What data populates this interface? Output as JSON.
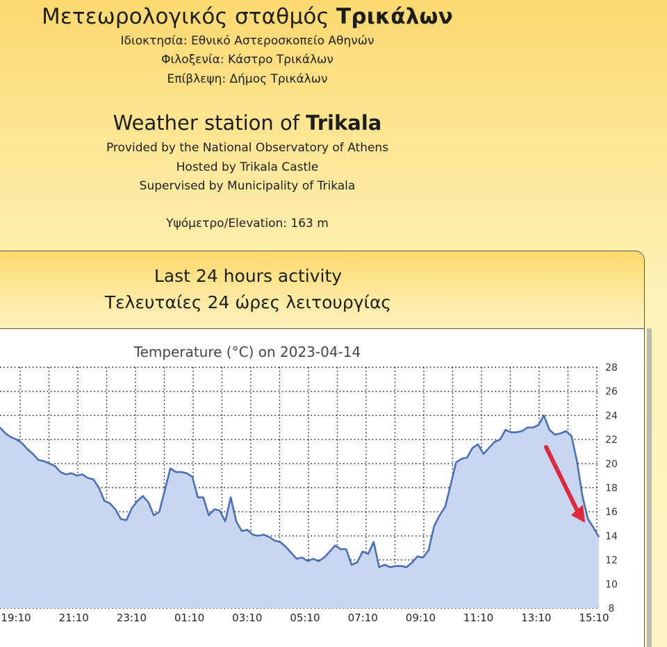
{
  "header": {
    "gr_title_prefix": "Μετεωρολογικός σταθμός ",
    "gr_title_bold": "Τρικάλων",
    "gr_owner": "Ιδιοκτησία: Εθνικό Αστεροσκοπείο Αθηνών",
    "gr_host": "Φιλοξενία: Κάστρο Τρικάλων",
    "gr_supervision": "Επίβλεψη: Δήμος Τρικάλων",
    "en_title_prefix": "Weather station of ",
    "en_title_bold": "Trikala",
    "en_owner": "Provided by the National Observatory of Athens",
    "en_host": "Hosted by Trikala Castle",
    "en_supervision": "Supervised by Municipality of Trikala",
    "elevation": "Υψόμετρο/Elevation: 163 m"
  },
  "panel": {
    "title_en": "Last 24 hours activity",
    "title_gr": "Τελευταίες 24 ώρες λειτουργίας"
  },
  "colors": {
    "line": "#4a6fb7",
    "fill": "#c8d6f0",
    "grid": "#111111",
    "arrow": "#e0283c"
  },
  "chart_data": {
    "type": "area",
    "title": "Temperature (°C) on 2023-04-14",
    "ylim": [
      8,
      28
    ],
    "yticks": [
      8,
      10,
      12,
      14,
      16,
      18,
      20,
      22,
      24,
      26,
      28
    ],
    "xlabels": [
      "19:10",
      "21:10",
      "23:10",
      "01:10",
      "03:10",
      "05:10",
      "07:10",
      "09:10",
      "11:10",
      "13:10",
      "15:10"
    ],
    "grid": true,
    "series": [
      {
        "values": [
          23.0,
          22.5,
          22.2,
          22.0,
          21.7,
          21.2,
          20.8,
          20.3,
          20.2,
          20.0,
          19.8,
          19.3,
          19.1,
          19.2,
          19.0,
          19.1,
          18.8,
          18.7,
          18.0,
          16.9,
          16.7,
          16.2,
          15.4,
          15.3,
          16.3,
          16.9,
          17.3,
          16.8,
          15.7,
          16.0,
          17.8,
          19.6,
          19.3,
          19.3,
          19.2,
          18.9,
          17.2,
          17.2,
          15.7,
          16.2,
          16.1,
          15.2,
          17.2,
          15.2,
          14.4,
          14.5,
          14.1,
          14.0,
          14.1,
          13.9,
          13.6,
          13.5,
          13.1,
          12.6,
          12.1,
          12.2,
          11.9,
          12.1,
          11.9,
          12.2,
          12.7,
          13.2,
          12.9,
          12.9,
          11.6,
          11.8,
          12.7,
          12.5,
          13.5,
          11.4,
          11.6,
          11.4,
          11.5,
          11.5,
          11.4,
          11.8,
          12.3,
          12.2,
          12.8,
          14.8,
          15.7,
          16.4,
          18.2,
          20.1,
          20.4,
          20.5,
          21.3,
          21.6,
          20.8,
          21.3,
          21.8,
          22.0,
          22.8,
          22.6,
          22.6,
          22.7,
          23.0,
          23.0,
          23.2,
          24.0,
          22.8,
          22.4,
          22.5,
          22.7,
          22.3,
          20.2,
          17.3,
          15.4,
          14.7,
          13.9
        ]
      }
    ]
  }
}
